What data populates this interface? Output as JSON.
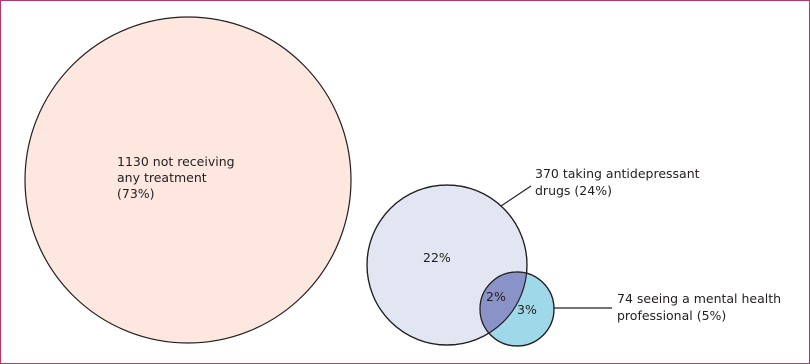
{
  "colors": {
    "frame": "#b0386a",
    "not_treated_fill": "#fde7df",
    "antidepressant_fill": "#e2e6f2",
    "mental_health_fill": "#9fd8e8",
    "overlap_fill": "#8a93c8",
    "stroke": "#231f20"
  },
  "not_treated": {
    "line1": "1130 not receiving",
    "line2": "any treatment",
    "line3": "(73%)",
    "percent": 73
  },
  "antidepressant": {
    "line1": "370 taking antidepressant",
    "line2": "drugs (24%)",
    "only_label": "22%",
    "percent": 24
  },
  "mental_health": {
    "line1": "74 seeing a mental health",
    "line2": "professional (5%)",
    "only_label": "3%",
    "percent": 5
  },
  "overlap": {
    "label": "2%",
    "percent": 2
  }
}
